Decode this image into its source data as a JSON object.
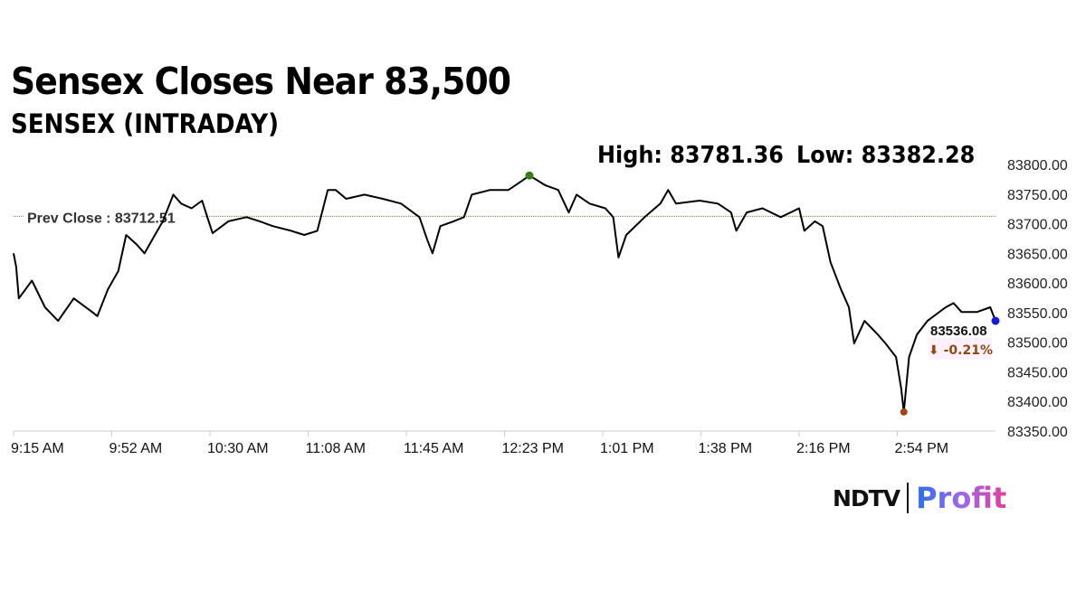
{
  "chart_data": {
    "type": "line",
    "title": "Sensex Closes Near 83,500",
    "subtitle": "SENSEX (INTRADAY)",
    "high_label": "High: 83781.36",
    "low_label": "Low: 83382.28",
    "high": 83781.36,
    "low": 83382.28,
    "prev_close": 83712.51,
    "prev_close_label": "Prev Close : 83712.51",
    "last_value_label": "83536.08",
    "change_label": "⬇ -0.21%",
    "ylim": [
      83350,
      83800
    ],
    "yticks": [
      "83350.00",
      "83400.00",
      "83450.00",
      "83500.00",
      "83550.00",
      "83600.00",
      "83650.00",
      "83700.00",
      "83750.00",
      "83800.00"
    ],
    "xlim": [
      "9:15",
      "15:30"
    ],
    "xticks": [
      "9:15 AM",
      "9:52 AM",
      "10:30 AM",
      "11:08 AM",
      "11:45 AM",
      "12:23 PM",
      "1:01 PM",
      "1:38 PM",
      "2:16 PM",
      "2:54 PM"
    ],
    "grid": false,
    "colors": {
      "line": "#000000",
      "high_marker": "#3a7a1a",
      "low_marker": "#a0441a",
      "close_marker": "#1a1ad0",
      "change": "#8b4a12",
      "prev_close_line": "#8a7a50"
    },
    "x": [
      "9:15",
      "9:16",
      "9:17",
      "9:22",
      "9:27",
      "9:32",
      "9:38",
      "9:45",
      "9:47",
      "9:51",
      "9:55",
      "9:58",
      "10:02",
      "10:05",
      "10:09",
      "10:12",
      "10:16",
      "10:19",
      "10:23",
      "10:27",
      "10:29",
      "10:31",
      "10:37",
      "10:44",
      "10:49",
      "10:54",
      "11:01",
      "11:06",
      "11:11",
      "11:15",
      "11:18",
      "11:22",
      "11:29",
      "11:36",
      "11:43",
      "11:50",
      "11:53",
      "11:55",
      "11:58",
      "12:03",
      "12:07",
      "12:10",
      "12:17",
      "12:24",
      "12:29",
      "12:32",
      "12:38",
      "12:43",
      "12:47",
      "12:50",
      "12:55",
      "13:01",
      "13:04",
      "13:06",
      "13:09",
      "13:16",
      "13:22",
      "13:25",
      "13:28",
      "13:37",
      "13:44",
      "13:49",
      "13:51",
      "13:55",
      "14:01",
      "14:08",
      "14:15",
      "14:17",
      "14:21",
      "14:24",
      "14:27",
      "14:31",
      "14:34",
      "14:36",
      "14:40",
      "14:45",
      "14:48",
      "14:52",
      "14:54",
      "14:55",
      "14:57",
      "15:00",
      "15:04",
      "15:11",
      "15:14",
      "15:17",
      "15:23",
      "15:28",
      "15:30"
    ],
    "values": [
      83650,
      83627,
      83574,
      83604,
      83559,
      83536,
      83574,
      83551,
      83544,
      83589,
      83620,
      83681,
      83665,
      83650,
      83681,
      83704,
      83749,
      83734,
      83726,
      83739,
      83711,
      83684,
      83704,
      83711,
      83704,
      83696,
      83688,
      83681,
      83688,
      83757,
      83757,
      83742,
      83749,
      83742,
      83734,
      83711,
      83673,
      83650,
      83696,
      83704,
      83711,
      83749,
      83757,
      83757,
      83772,
      83781.36,
      83765,
      83757,
      83719,
      83749,
      83734,
      83726,
      83711,
      83643,
      83681,
      83711,
      83734,
      83757,
      83734,
      83739,
      83734,
      83719,
      83688,
      83719,
      83726,
      83711,
      83726,
      83688,
      83704,
      83696,
      83635,
      83589,
      83559,
      83498,
      83536,
      83513,
      83498,
      83475,
      83422,
      83382.28,
      83475,
      83513,
      83536,
      83559,
      83566,
      83551,
      83551,
      83559,
      83536.08
    ]
  },
  "logo": {
    "brand": "NDTV",
    "product": "Profit"
  }
}
